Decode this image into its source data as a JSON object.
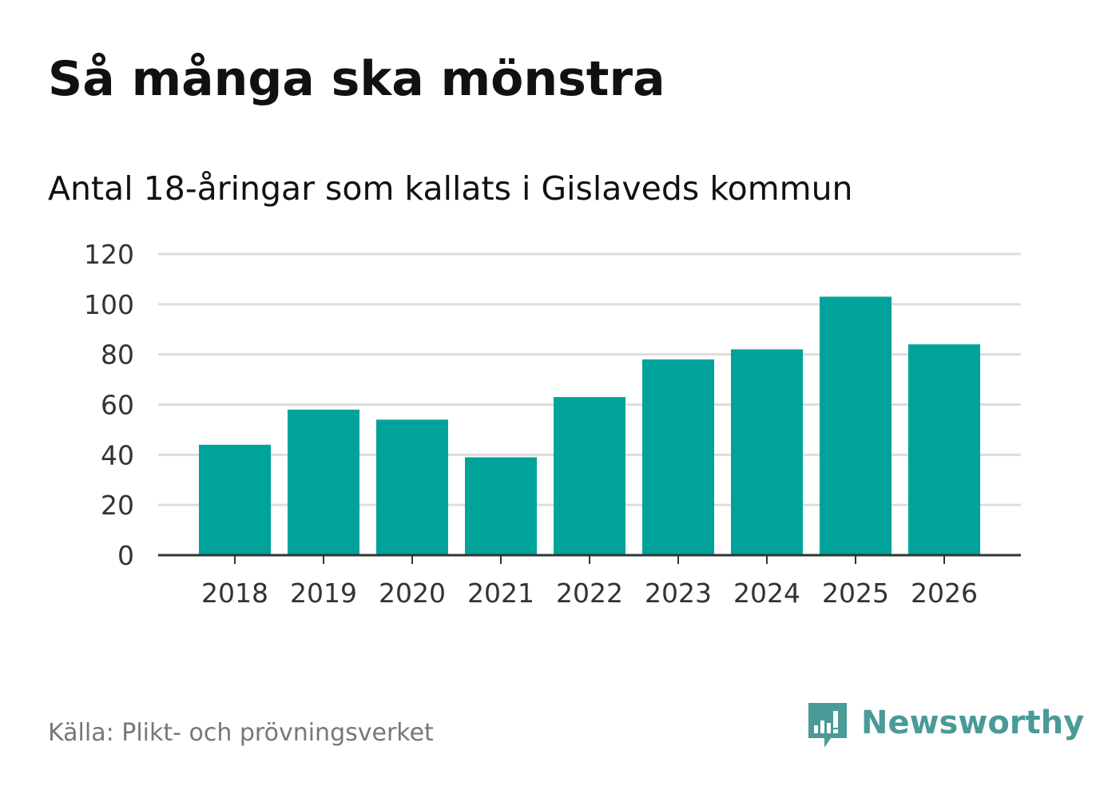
{
  "header": {
    "title": "Så många ska mönstra",
    "subtitle": "Antal 18-åringar som kallats i Gislaveds kommun"
  },
  "footer": {
    "source": "Källa: Plikt- och prövningsverket",
    "brand_name": "Newsworthy",
    "brand_icon": "speech-bubble-bar-chart-icon"
  },
  "colors": {
    "bar": "#00a39a",
    "grid": "#dddddd",
    "axis": "#333333",
    "brand": "#4a9a97"
  },
  "chart_data": {
    "type": "bar",
    "title": "Så många ska mönstra",
    "subtitle": "Antal 18-åringar som kallats i Gislaveds kommun",
    "categories": [
      "2018",
      "2019",
      "2020",
      "2021",
      "2022",
      "2023",
      "2024",
      "2025",
      "2026"
    ],
    "values": [
      44,
      58,
      54,
      39,
      63,
      78,
      82,
      103,
      84
    ],
    "xlabel": "",
    "ylabel": "",
    "ylim": [
      0,
      120
    ],
    "yticks": [
      "0",
      "20",
      "40",
      "60",
      "80",
      "100",
      "120"
    ],
    "grid": true,
    "legend": "none"
  }
}
